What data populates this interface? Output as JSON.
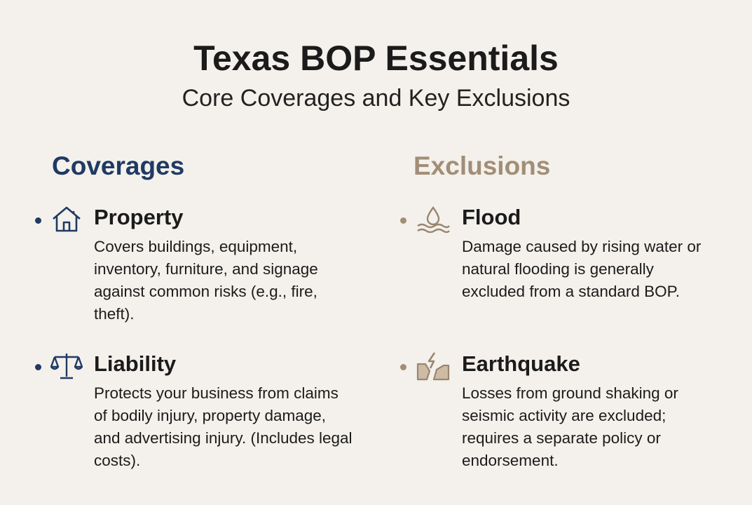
{
  "header": {
    "title": "Texas BOP Essentials",
    "subtitle": "Core Coverages and Key Exclusions"
  },
  "columns": [
    {
      "heading": "Coverages",
      "items": [
        {
          "title": "Property",
          "description": "Covers buildings, equipment, inventory, furniture, and signage against common risks (e.g., fire, theft)."
        },
        {
          "title": "Liability",
          "description": "Protects your business from claims of bodily injury, property damage, and advertising injury. (Includes legal costs)."
        }
      ]
    },
    {
      "heading": "Exclusions",
      "items": [
        {
          "title": "Flood",
          "description": "Damage caused by rising water or natural flooding is generally excluded from a standard BOP."
        },
        {
          "title": "Earthquake",
          "description": "Losses from ground shaking or seismic activity are excluded; requires a separate policy or endorsement."
        }
      ]
    }
  ]
}
